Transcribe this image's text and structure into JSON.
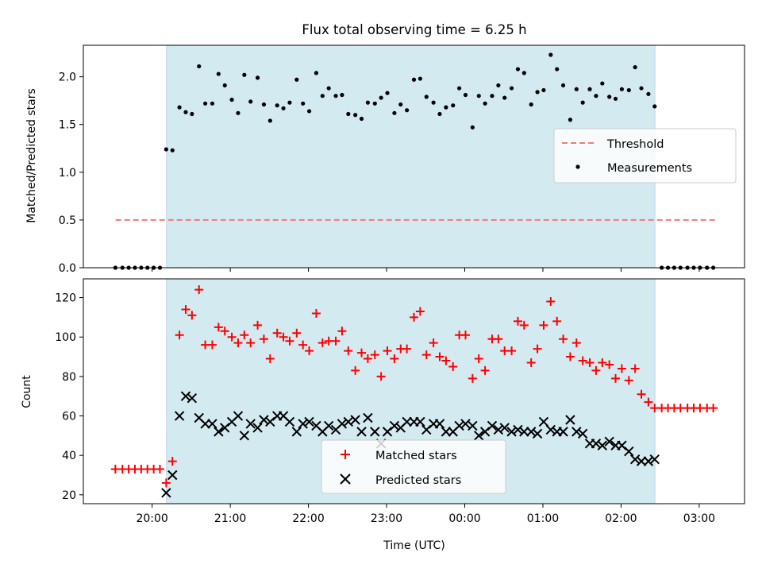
{
  "figure": {
    "title": "Flux total observing time = 6.25 h",
    "xlabel": "Time (UTC)",
    "xtick_labels": [
      "20:00",
      "21:00",
      "22:00",
      "23:00",
      "00:00",
      "01:00",
      "02:00",
      "03:00"
    ]
  },
  "chart_data": [
    {
      "type": "scatter",
      "ylabel": "Matched/Predicted stars",
      "ylim": [
        0,
        2.33
      ],
      "yticks": [
        0.0,
        0.5,
        1.0,
        1.5,
        2.0
      ],
      "ytick_labels": [
        "0.0",
        "0.5",
        "1.0",
        "1.5",
        "2.0"
      ],
      "x_unit": "hours since 20:00 UTC",
      "xlim": [
        -0.88,
        7.58
      ],
      "shaded_interval": {
        "start": "20:11",
        "end": "02:26",
        "color": "#d4eaf1"
      },
      "threshold": {
        "name": "Threshold",
        "value": 0.5,
        "x_range": [
          "19:32",
          "03:12"
        ],
        "color": "#f07a7a",
        "style": "dashed"
      },
      "series": [
        {
          "name": "Measurements",
          "color": "#000000",
          "marker": "dot",
          "x": [
            -0.47,
            -0.38,
            -0.3,
            -0.22,
            -0.14,
            -0.06,
            0.02,
            0.1,
            0.18,
            0.26,
            0.35,
            0.43,
            0.51,
            0.6,
            0.68,
            0.77,
            0.85,
            0.93,
            1.02,
            1.1,
            1.18,
            1.26,
            1.35,
            1.43,
            1.51,
            1.6,
            1.68,
            1.76,
            1.85,
            1.93,
            2.01,
            2.1,
            2.18,
            2.26,
            2.35,
            2.43,
            2.51,
            2.6,
            2.68,
            2.76,
            2.85,
            2.93,
            3.01,
            3.1,
            3.18,
            3.26,
            3.35,
            3.43,
            3.51,
            3.6,
            3.68,
            3.76,
            3.85,
            3.93,
            4.01,
            4.1,
            4.18,
            4.26,
            4.35,
            4.43,
            4.51,
            4.6,
            4.68,
            4.76,
            4.85,
            4.93,
            5.01,
            5.1,
            5.18,
            5.26,
            5.35,
            5.43,
            5.51,
            5.6,
            5.68,
            5.76,
            5.85,
            5.93,
            6.01,
            6.1,
            6.18,
            6.26,
            6.35,
            6.43,
            6.52,
            6.6,
            6.68,
            6.76,
            6.85,
            6.93,
            7.01,
            7.1,
            7.18
          ],
          "y": [
            0,
            0,
            0,
            0,
            0,
            0,
            0,
            0,
            1.24,
            1.23,
            1.68,
            1.63,
            1.61,
            2.11,
            1.72,
            1.72,
            2.03,
            1.91,
            1.76,
            1.62,
            2.02,
            1.74,
            1.99,
            1.71,
            1.54,
            1.7,
            1.67,
            1.73,
            1.97,
            1.72,
            1.64,
            2.04,
            1.8,
            1.88,
            1.8,
            1.81,
            1.61,
            1.6,
            1.56,
            1.73,
            1.72,
            1.78,
            1.83,
            1.62,
            1.71,
            1.65,
            1.97,
            1.98,
            1.79,
            1.73,
            1.61,
            1.68,
            1.7,
            1.88,
            1.81,
            1.47,
            1.8,
            1.72,
            1.8,
            1.91,
            1.78,
            1.88,
            2.08,
            2.04,
            1.71,
            1.84,
            1.86,
            2.23,
            2.08,
            1.91,
            1.55,
            1.87,
            1.73,
            1.87,
            1.8,
            1.93,
            1.79,
            1.77,
            1.87,
            1.86,
            2.1,
            1.88,
            1.82,
            1.69,
            0,
            0,
            0,
            0,
            0,
            0,
            0,
            0,
            0
          ]
        }
      ]
    },
    {
      "type": "scatter",
      "ylabel": "Count",
      "ylim": [
        15.5,
        129.5
      ],
      "yticks": [
        20,
        40,
        60,
        80,
        100,
        120
      ],
      "ytick_labels": [
        "20",
        "40",
        "60",
        "80",
        "100",
        "120"
      ],
      "x_unit": "hours since 20:00 UTC",
      "xlim": [
        -0.88,
        7.58
      ],
      "shaded_interval": {
        "start": "20:11",
        "end": "02:26",
        "color": "#d4eaf1"
      },
      "series": [
        {
          "name": "Matched stars",
          "color": "#ff0000",
          "marker": "plus",
          "x": [
            -0.47,
            -0.38,
            -0.3,
            -0.22,
            -0.14,
            -0.06,
            0.02,
            0.1,
            0.18,
            0.26,
            0.35,
            0.43,
            0.51,
            0.6,
            0.68,
            0.77,
            0.85,
            0.93,
            1.02,
            1.1,
            1.18,
            1.26,
            1.35,
            1.43,
            1.51,
            1.6,
            1.68,
            1.76,
            1.85,
            1.93,
            2.01,
            2.1,
            2.18,
            2.26,
            2.35,
            2.43,
            2.51,
            2.6,
            2.68,
            2.76,
            2.85,
            2.93,
            3.01,
            3.1,
            3.18,
            3.26,
            3.35,
            3.43,
            3.51,
            3.6,
            3.68,
            3.76,
            3.85,
            3.93,
            4.01,
            4.1,
            4.18,
            4.26,
            4.35,
            4.43,
            4.51,
            4.6,
            4.68,
            4.76,
            4.85,
            4.93,
            5.01,
            5.1,
            5.18,
            5.26,
            5.35,
            5.43,
            5.51,
            5.6,
            5.68,
            5.76,
            5.85,
            5.93,
            6.01,
            6.1,
            6.18,
            6.26,
            6.35,
            6.43,
            6.52,
            6.6,
            6.68,
            6.76,
            6.85,
            6.93,
            7.01,
            7.1,
            7.18
          ],
          "y": [
            33,
            33,
            33,
            33,
            33,
            33,
            33,
            33,
            26,
            37,
            101,
            114,
            111,
            124,
            96,
            96,
            105,
            103,
            100,
            97,
            101,
            97,
            106,
            99,
            89,
            102,
            100,
            98,
            102,
            96,
            93,
            112,
            97,
            98,
            98,
            103,
            93,
            83,
            92,
            89,
            91,
            80,
            93,
            89,
            94,
            94,
            110,
            113,
            91,
            97,
            90,
            88,
            85,
            101,
            101,
            79,
            89,
            83,
            99,
            99,
            93,
            93,
            108,
            106,
            87,
            94,
            106,
            118,
            108,
            99,
            90,
            97,
            88,
            87,
            83,
            87,
            86,
            79,
            84,
            78,
            84,
            71,
            67,
            64,
            64,
            64,
            64,
            64,
            64,
            64,
            64,
            64,
            64
          ]
        },
        {
          "name": "Predicted stars",
          "color": "#000000",
          "marker": "x",
          "x": [
            0.18,
            0.26,
            0.35,
            0.43,
            0.51,
            0.6,
            0.68,
            0.77,
            0.85,
            0.93,
            1.02,
            1.1,
            1.18,
            1.26,
            1.35,
            1.43,
            1.51,
            1.6,
            1.68,
            1.76,
            1.85,
            1.93,
            2.01,
            2.1,
            2.18,
            2.26,
            2.35,
            2.43,
            2.51,
            2.6,
            2.68,
            2.76,
            2.85,
            2.93,
            3.01,
            3.1,
            3.18,
            3.26,
            3.35,
            3.43,
            3.51,
            3.6,
            3.68,
            3.76,
            3.85,
            3.93,
            4.01,
            4.1,
            4.18,
            4.26,
            4.35,
            4.43,
            4.51,
            4.6,
            4.68,
            4.76,
            4.85,
            4.93,
            5.01,
            5.1,
            5.18,
            5.26,
            5.35,
            5.43,
            5.51,
            5.6,
            5.68,
            5.76,
            5.85,
            5.93,
            6.01,
            6.1,
            6.18,
            6.26,
            6.35,
            6.43
          ],
          "y": [
            21,
            30,
            60,
            70,
            69,
            59,
            56,
            56,
            52,
            54,
            57,
            60,
            50,
            56,
            54,
            58,
            57,
            60,
            60,
            57,
            52,
            56,
            57,
            55,
            52,
            55,
            53,
            56,
            57,
            58,
            52,
            59,
            52,
            46,
            52,
            55,
            54,
            57,
            57,
            57,
            53,
            56,
            56,
            52,
            52,
            55,
            56,
            55,
            50,
            52,
            55,
            53,
            54,
            52,
            53,
            52,
            52,
            51,
            57,
            53,
            52,
            52,
            58,
            52,
            51,
            46,
            46,
            45,
            47,
            45,
            45,
            42,
            38,
            37,
            37,
            38
          ]
        }
      ]
    }
  ]
}
